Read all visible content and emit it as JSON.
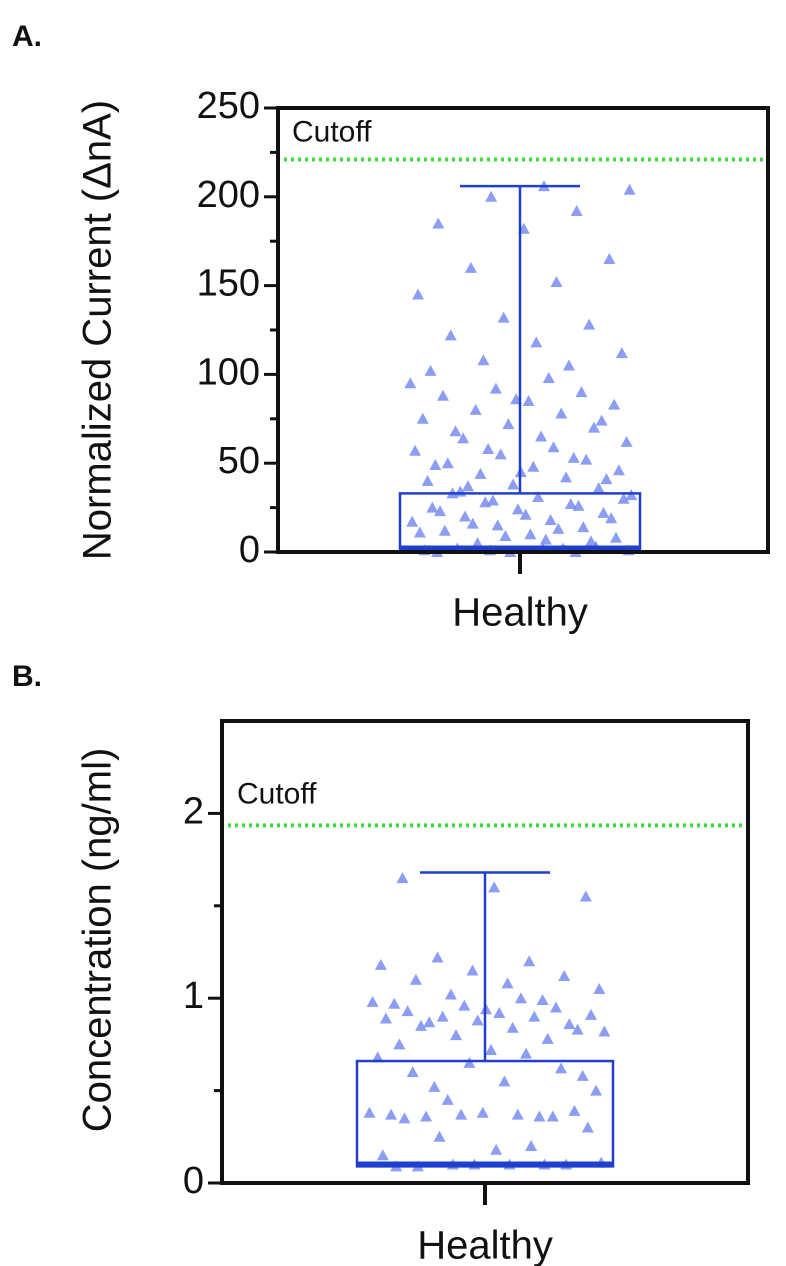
{
  "chart_data": [
    {
      "type": "box",
      "panel_label": "A.",
      "ylabel": "Normalized Current (ΔnA)",
      "categories": [
        "Healthy"
      ],
      "ylim": [
        0,
        250
      ],
      "yticks": [
        0,
        50,
        100,
        150,
        200,
        250
      ],
      "minor_yticks": [
        25,
        75,
        125,
        175,
        225
      ],
      "box": {
        "min": 0,
        "q1": 0,
        "median": 2,
        "q3": 33,
        "max": 206
      },
      "cutoff": {
        "value": 221,
        "label": "Cutoff",
        "color": "#3ddc3d"
      },
      "point_color": "#6f86f0",
      "box_color": "#1f3fcf",
      "points": [
        0,
        0,
        1,
        1,
        2,
        2,
        3,
        0,
        1,
        2,
        5,
        8,
        10,
        12,
        14,
        15,
        17,
        18,
        20,
        22,
        24,
        25,
        27,
        28,
        30,
        31,
        33,
        6,
        9,
        11,
        13,
        16,
        19,
        21,
        23,
        26,
        29,
        32,
        7,
        34,
        36,
        38,
        40,
        42,
        44,
        46,
        48,
        50,
        52,
        55,
        57,
        59,
        37,
        41,
        45,
        49,
        53,
        58,
        62,
        65,
        68,
        70,
        72,
        75,
        78,
        80,
        83,
        85,
        88,
        90,
        92,
        95,
        98,
        64,
        74,
        86,
        102,
        105,
        108,
        112,
        118,
        122,
        128,
        132,
        145,
        152,
        160,
        165,
        182,
        185,
        192,
        200,
        204,
        206
      ]
    },
    {
      "type": "box",
      "panel_label": "B.",
      "ylabel": "Concentration (ng/ml)",
      "categories": [
        "Healthy"
      ],
      "ylim": [
        0,
        2.5
      ],
      "yticks": [
        0,
        1,
        2
      ],
      "minor_yticks": [
        0.5,
        1.5
      ],
      "box": {
        "min": 0.09,
        "q1": 0.09,
        "median": 0.1,
        "q3": 0.66,
        "max": 1.68
      },
      "cutoff": {
        "value": 1.935,
        "label": "Cutoff",
        "color": "#3ddc3d"
      },
      "point_color": "#6f86f0",
      "box_color": "#1f3fcf",
      "points": [
        0.09,
        0.1,
        0.1,
        0.11,
        0.1,
        0.09,
        0.1,
        0.1,
        0.15,
        0.2,
        0.25,
        0.3,
        0.18,
        0.35,
        0.36,
        0.37,
        0.38,
        0.37,
        0.36,
        0.39,
        0.38,
        0.37,
        0.36,
        0.45,
        0.5,
        0.55,
        0.6,
        0.62,
        0.65,
        0.68,
        0.7,
        0.52,
        0.58,
        0.72,
        0.75,
        0.78,
        0.8,
        0.82,
        0.84,
        0.85,
        0.86,
        0.88,
        0.89,
        0.9,
        0.9,
        0.91,
        0.92,
        0.93,
        0.95,
        0.96,
        0.98,
        1.0,
        0.87,
        0.83,
        0.94,
        0.97,
        0.99,
        1.02,
        1.05,
        1.08,
        1.1,
        1.12,
        1.15,
        1.18,
        1.2,
        1.22,
        1.55,
        1.6,
        1.65
      ]
    }
  ]
}
